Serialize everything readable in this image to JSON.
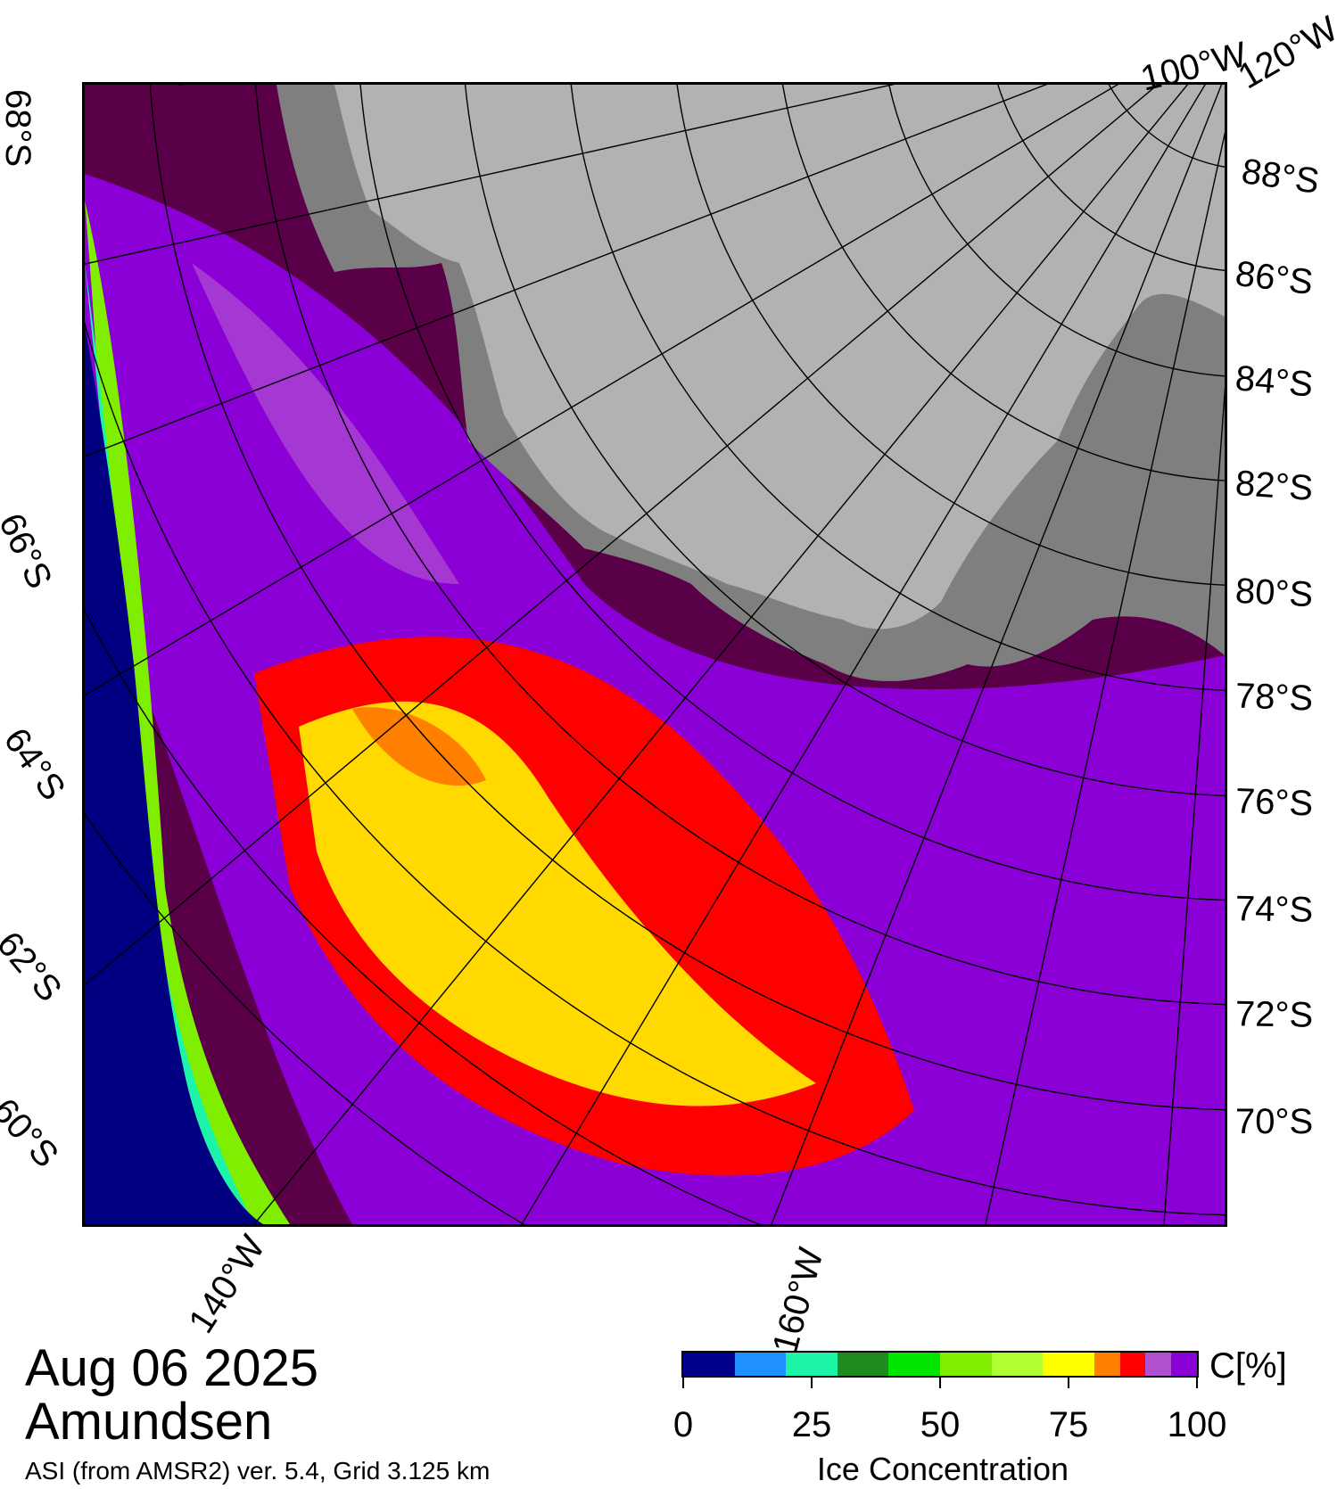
{
  "title": {
    "date": "Aug 06 2025",
    "region": "Amundsen",
    "product": "ASI (from AMSR2) ver. 5.4,  Grid 3.125 km"
  },
  "map": {
    "type": "sea-ice-concentration",
    "projection": "polar stereographic (south)",
    "lat_labels_right": [
      "88°S",
      "86°S",
      "84°S",
      "82°S",
      "80°S",
      "78°S",
      "76°S",
      "74°S",
      "72°S",
      "70°S"
    ],
    "lat_labels_left": [
      "68°S",
      "66°S",
      "64°S",
      "62°S",
      "60°S"
    ],
    "lon_labels_bottom": [
      "140°W",
      "160°W"
    ],
    "lon_labels_top": [
      "100°W",
      "120°W"
    ],
    "colors": {
      "land_ice": "#b2b2b2",
      "land_shadow": "#7f7f7f",
      "open_water": "#000080",
      "grid_lines": "#000000"
    }
  },
  "colorbar": {
    "unit": "C[%]",
    "title": "Ice Concentration",
    "min": 0,
    "max": 100,
    "tick_values": [
      0,
      25,
      50,
      75,
      100
    ],
    "tick_labels": [
      "0",
      "25",
      "50",
      "75",
      "100"
    ],
    "bins": [
      {
        "from": 0,
        "to": 10,
        "color": "#00008b"
      },
      {
        "from": 10,
        "to": 20,
        "color": "#1e90ff"
      },
      {
        "from": 20,
        "to": 30,
        "color": "#1cf5a8"
      },
      {
        "from": 30,
        "to": 40,
        "color": "#1f8a1f"
      },
      {
        "from": 40,
        "to": 50,
        "color": "#00e600"
      },
      {
        "from": 50,
        "to": 60,
        "color": "#80ee00"
      },
      {
        "from": 60,
        "to": 70,
        "color": "#b0ff30"
      },
      {
        "from": 70,
        "to": 80,
        "color": "#ffff00"
      },
      {
        "from": 80,
        "to": 85,
        "color": "#ff8000"
      },
      {
        "from": 85,
        "to": 90,
        "color": "#ff0000"
      },
      {
        "from": 90,
        "to": 95,
        "color": "#b04fd0"
      },
      {
        "from": 95,
        "to": 100,
        "color": "#8a00d6"
      }
    ]
  }
}
